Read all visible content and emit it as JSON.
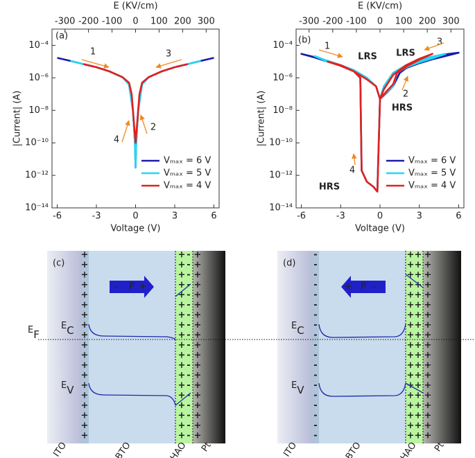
{
  "chart_data": [
    {
      "type": "line",
      "panel": "(a)",
      "xlabel": "Voltage (V)",
      "ylabel": "|Current| (A)",
      "x2label": "E (KV/cm)",
      "xlim": [
        -6.4,
        6.4
      ],
      "xticks": [
        -6,
        -3,
        0,
        3,
        6
      ],
      "x2lim": [
        -355,
        355
      ],
      "x2ticks": [
        -300,
        -200,
        -100,
        0,
        100,
        200,
        300
      ],
      "ylim": [
        1e-14,
        0.001
      ],
      "log_y": true,
      "yticks": [
        {
          "value": 0.0001,
          "label": "10⁻⁴"
        },
        {
          "value": 1e-06,
          "label": "10⁻⁶"
        },
        {
          "value": 1e-08,
          "label": "10⁻⁸"
        },
        {
          "value": 1e-10,
          "label": "10⁻¹⁰"
        },
        {
          "value": 1e-12,
          "label": "10⁻¹²"
        },
        {
          "value": 1e-14,
          "label": "10⁻¹⁴"
        }
      ],
      "legend": "lower right",
      "annotations": [
        "1",
        "3",
        "2",
        "4"
      ],
      "series": [
        {
          "name": "Vₘₐₓ = 6 V",
          "color": "#1a1aa8",
          "x": [
            -6,
            -5,
            -4,
            -3,
            -2,
            -1,
            -0.5,
            -0.2,
            -0.05,
            0,
            0.05,
            0.2,
            0.5,
            1,
            2,
            3,
            4,
            5,
            6
          ],
          "values": [
            1.7e-05,
            1.1e-05,
            7e-06,
            4.5e-06,
            2.5e-06,
            1.1e-06,
            4e-07,
            1e-08,
            1e-10,
            3e-12,
            1e-10,
            1e-08,
            4e-07,
            1.1e-06,
            2.5e-06,
            4.5e-06,
            7e-06,
            1.1e-05,
            1.7e-05
          ]
        },
        {
          "name": "Vₘₐₓ = 5 V",
          "color": "#22d8f0",
          "x": [
            -5,
            -4,
            -3,
            -2,
            -1,
            -0.5,
            -0.2,
            -0.05,
            0,
            0.05,
            0.2,
            0.5,
            1,
            2,
            3,
            4,
            5
          ],
          "values": [
            1.1e-05,
            7e-06,
            4.5e-06,
            2.5e-06,
            1.1e-06,
            4e-07,
            1e-08,
            1e-10,
            3e-12,
            1e-10,
            1e-08,
            4e-07,
            1.1e-06,
            2.5e-06,
            4.5e-06,
            7e-06,
            1.1e-05
          ]
        },
        {
          "name": "Vₘₐₓ = 4 V",
          "color": "#e02020",
          "x": [
            -4,
            -3,
            -2,
            -1,
            -0.5,
            -0.3,
            -0.1,
            0,
            0.1,
            0.3,
            0.5,
            1,
            2,
            3,
            4
          ],
          "values": [
            7e-06,
            4.5e-06,
            2.5e-06,
            1.1e-06,
            5e-07,
            1e-07,
            1e-09,
            1e-10,
            1e-09,
            1e-07,
            5e-07,
            1.1e-06,
            2.5e-06,
            4.5e-06,
            7e-06
          ]
        }
      ]
    },
    {
      "type": "line",
      "panel": "(b)",
      "xlabel": "Voltage (V)",
      "ylabel": "|Current| (A)",
      "x2label": "E (KV/cm)",
      "xlim": [
        -6.4,
        6.4
      ],
      "xticks": [
        -6,
        -3,
        0,
        3,
        6
      ],
      "x2lim": [
        -355,
        355
      ],
      "x2ticks": [
        -300,
        -200,
        -100,
        0,
        100,
        200,
        300
      ],
      "ylim": [
        1e-14,
        0.001
      ],
      "log_y": true,
      "yticks": [
        {
          "value": 0.0001,
          "label": "10⁻⁴"
        },
        {
          "value": 1e-06,
          "label": "10⁻⁶"
        },
        {
          "value": 1e-08,
          "label": "10⁻⁸"
        },
        {
          "value": 1e-10,
          "label": "10⁻¹⁰"
        },
        {
          "value": 1e-12,
          "label": "10⁻¹²"
        },
        {
          "value": 1e-14,
          "label": "10⁻¹⁴"
        }
      ],
      "legend": "lower right",
      "annotations": [
        "1",
        "LRS",
        "3",
        "LRS",
        "2",
        "HRS",
        "4",
        "HRS"
      ],
      "series": [
        {
          "name": "Vₘₐₓ = 6 V",
          "color": "#1a1aa8",
          "x": [
            0,
            0.5,
            1,
            1.5,
            2,
            3,
            4,
            5,
            6,
            5,
            4,
            3,
            2,
            1,
            0.3,
            0,
            -0.2,
            -0.5,
            -1,
            -1.4,
            -1.5,
            -2,
            -3,
            -4,
            -5,
            -6,
            -5,
            -4,
            -3,
            -2,
            -1,
            -0.3,
            0
          ],
          "values": [
            5e-08,
            1.2e-07,
            3e-07,
            2e-06,
            4e-06,
            8e-06,
            1.4e-05,
            2.2e-05,
            3.5e-05,
            2.8e-05,
            2e-05,
            1.2e-05,
            6e-06,
            2e-06,
            3e-07,
            5e-08,
            1e-13,
            2e-13,
            4e-13,
            2e-12,
            1e-06,
            3e-06,
            6e-06,
            1e-05,
            1.8e-05,
            3e-05,
            1.9e-05,
            1.1e-05,
            6e-06,
            3e-06,
            1e-06,
            3e-07,
            5e-08
          ]
        },
        {
          "name": "Vₘₐₓ = 5 V",
          "color": "#22d8f0",
          "x": [
            0,
            0.5,
            1,
            1.3,
            2,
            3,
            4,
            5,
            4,
            3,
            2,
            1,
            0.3,
            0,
            -0.2,
            -0.5,
            -1,
            -1.4,
            -1.5,
            -2,
            -3,
            -4,
            -5,
            -4,
            -3,
            -2,
            -1,
            -0.3,
            0
          ],
          "values": [
            5e-08,
            1.3e-07,
            3e-07,
            2e-06,
            4.5e-06,
            9e-06,
            1.6e-05,
            3e-05,
            2e-05,
            1.2e-05,
            6e-06,
            2e-06,
            3e-07,
            5e-08,
            1e-13,
            2e-13,
            4e-13,
            2e-12,
            1e-06,
            3e-06,
            6e-06,
            1e-05,
            2.2e-05,
            1.1e-05,
            6e-06,
            3e-06,
            1e-06,
            3e-07,
            5e-08
          ]
        },
        {
          "name": "Vₘₐₓ = 4 V",
          "color": "#e02020",
          "x": [
            0,
            0.5,
            1,
            1.3,
            2,
            3,
            4,
            3,
            2,
            1,
            0.3,
            0,
            -0.2,
            -0.5,
            -1,
            -1.4,
            -1.5,
            -2,
            -3,
            -4,
            -3,
            -2,
            -1,
            -0.3,
            0
          ],
          "values": [
            5e-08,
            1.5e-07,
            4e-07,
            2e-06,
            5e-06,
            1.3e-05,
            3e-05,
            1.5e-05,
            6e-06,
            1.5e-06,
            2e-07,
            5e-08,
            1e-13,
            2e-13,
            4e-13,
            2e-12,
            1e-06,
            2.5e-06,
            6e-06,
            1e-05,
            5.5e-06,
            2.5e-06,
            8e-07,
            3e-07,
            5e-08
          ]
        }
      ]
    }
  ],
  "diagrams": {
    "fermi": {
      "main": "E",
      "sub": "F"
    },
    "symbols": {
      "plus": "+",
      "minus": "-"
    },
    "c": {
      "panel": "(c)",
      "arrow": {
        "left": "-",
        "middle": "P",
        "right": "+"
      },
      "conduction": {
        "main": "E",
        "sub": "C"
      },
      "valence": {
        "main": "E",
        "sub": "V"
      },
      "layers": [
        "ITO",
        "BTO",
        "HAO",
        "Pt"
      ]
    },
    "d": {
      "panel": "(d)",
      "arrow": {
        "left": "+",
        "middle": "P",
        "right": "-"
      },
      "conduction": {
        "main": "E",
        "sub": "C"
      },
      "valence": {
        "main": "E",
        "sub": "V"
      },
      "layers": [
        "ITO",
        "BTO",
        "HAO",
        "Pt"
      ]
    }
  }
}
